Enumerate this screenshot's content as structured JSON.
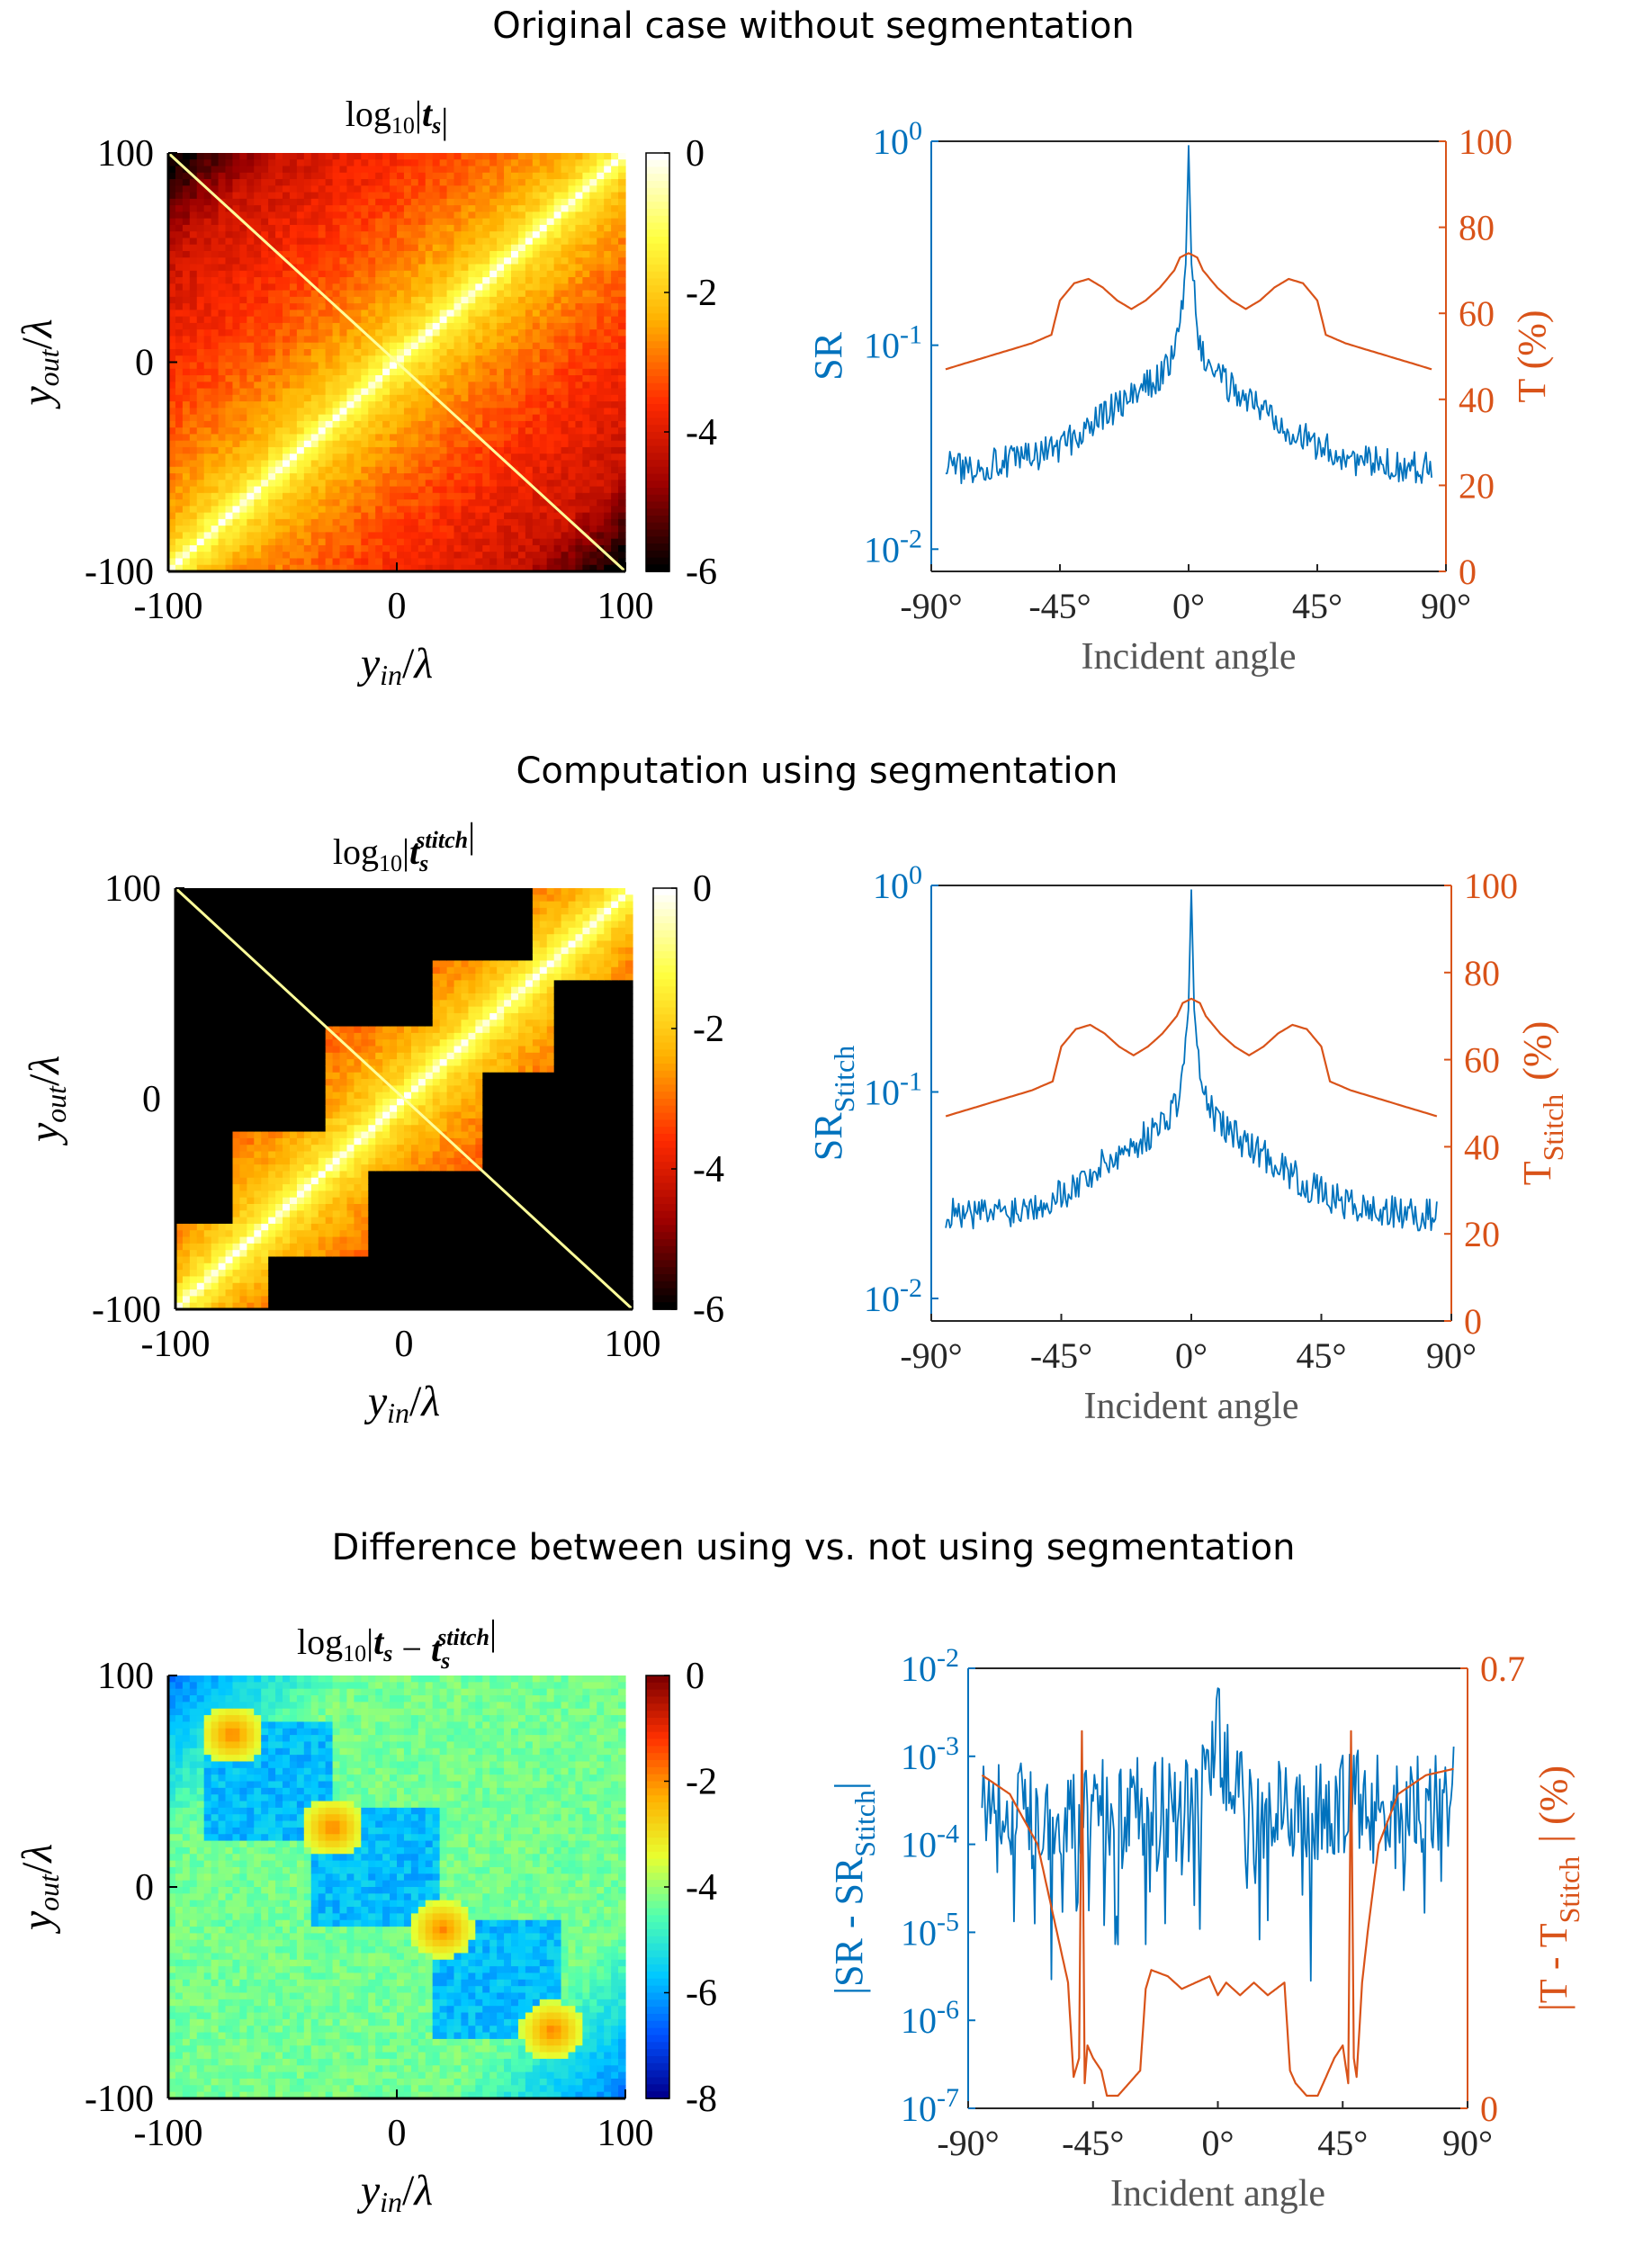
{
  "figure": {
    "section_titles": [
      "Original case without segmentation",
      "Computation using segmentation",
      "Difference between using vs. not using segmentation"
    ]
  },
  "colors": {
    "sr_blue": "#0072BD",
    "t_orange": "#D95319",
    "hot_colormap": [
      "#000000",
      "#9b0000",
      "#ff2a00",
      "#ffb000",
      "#ffff40",
      "#ffffff"
    ],
    "jet_colormap": [
      "#00008f",
      "#0050ff",
      "#00c8ff",
      "#50ffb0",
      "#e8ff30",
      "#ffb000",
      "#ff3000",
      "#800000"
    ]
  },
  "chart_data": [
    {
      "type": "heatmap",
      "title": "log10|t_s|",
      "title_parts": {
        "prefix": "log",
        "sub": "10",
        "bar_open": "|",
        "var": "t",
        "var_sub": "s",
        "var_sup": "",
        "minus_var": "",
        "minus_sub": "",
        "minus_sup": "",
        "bar_close": "|"
      },
      "xlabel": "y_in/λ",
      "ylabel": "y_out/λ",
      "xlim": [
        -100,
        100
      ],
      "ylim": [
        -100,
        100
      ],
      "xticks": [
        "-100",
        "0",
        "100"
      ],
      "yticks": [
        "100",
        "0",
        "-100"
      ],
      "colormap": "hot",
      "clim": [
        -6,
        0
      ],
      "colorbar_ticks": [
        "0",
        "-2",
        "-4",
        "-6"
      ],
      "pattern": "decaying band along the diagonal y_out = y_in; log10 value 0 on the diagonal falling to about -6 at the far corners"
    },
    {
      "type": "line",
      "xlabel": "Incident angle",
      "xticks": [
        "-90°",
        "-45°",
        "0°",
        "45°",
        "90°"
      ],
      "xlim": [
        -90,
        90
      ],
      "y_left": {
        "label": "SR",
        "label_sub": "",
        "scale": "log",
        "ticks": [
          "10^0",
          "10^-1",
          "10^-2"
        ],
        "lim": [
          0.00778,
          1
        ]
      },
      "y_right": {
        "label": "T (%)",
        "label_sub": "",
        "scale": "linear",
        "ticks": [
          "100",
          "80",
          "60",
          "40",
          "20",
          "0"
        ],
        "lim": [
          0,
          100
        ]
      },
      "series": [
        {
          "name": "SR",
          "axis": "left",
          "x": [
            -85,
            -80,
            -70,
            -60,
            -50,
            -40,
            -30,
            -20,
            -10,
            -5,
            -3,
            -1,
            0,
            1,
            3,
            5,
            10,
            20,
            30,
            40,
            50,
            60,
            70,
            80,
            85
          ],
          "y": [
            0.026,
            0.025,
            0.026,
            0.027,
            0.03,
            0.035,
            0.045,
            0.055,
            0.07,
            0.09,
            0.12,
            0.25,
            0.95,
            0.25,
            0.12,
            0.09,
            0.07,
            0.055,
            0.045,
            0.035,
            0.03,
            0.027,
            0.026,
            0.025,
            0.026
          ]
        },
        {
          "name": "T (%)",
          "axis": "right",
          "x": [
            -85,
            -70,
            -55,
            -48,
            -45,
            -40,
            -35,
            -30,
            -25,
            -20,
            -15,
            -10,
            -5,
            -3,
            0,
            3,
            5,
            10,
            15,
            20,
            25,
            30,
            35,
            40,
            45,
            48,
            55,
            70,
            85
          ],
          "y": [
            47,
            50,
            53,
            55,
            63,
            67,
            68,
            66,
            63,
            61,
            63,
            66,
            70,
            73,
            74,
            73,
            70,
            66,
            63,
            61,
            63,
            66,
            68,
            67,
            63,
            55,
            53,
            50,
            47
          ]
        }
      ]
    },
    {
      "type": "heatmap",
      "title": "log10|t_s^stitch|",
      "title_parts": {
        "prefix": "log",
        "sub": "10",
        "bar_open": "|",
        "var": "t",
        "var_sub": "s",
        "var_sup": "stitch",
        "minus_var": "",
        "minus_sub": "",
        "minus_sup": "",
        "bar_close": "|"
      },
      "xlabel": "y_in/λ",
      "ylabel": "y_out/λ",
      "xlim": [
        -100,
        100
      ],
      "ylim": [
        -100,
        100
      ],
      "xticks": [
        "-100",
        "0",
        "100"
      ],
      "yticks": [
        "100",
        "0",
        "-100"
      ],
      "colormap": "hot",
      "clim": [
        -6,
        0
      ],
      "colorbar_ticks": [
        "0",
        "-2",
        "-4",
        "-6"
      ],
      "pattern": "same diagonal band truncated to a staircase of overlapping square blocks; values outside the blocks are at the floor (-6)"
    },
    {
      "type": "line",
      "xlabel": "Incident angle",
      "xticks": [
        "-90°",
        "-45°",
        "0°",
        "45°",
        "90°"
      ],
      "xlim": [
        -90,
        90
      ],
      "y_left": {
        "label": "SR",
        "label_sub": "Stitch",
        "scale": "log",
        "ticks": [
          "10^0",
          "10^-1",
          "10^-2"
        ],
        "lim": [
          0.00778,
          1
        ]
      },
      "y_right": {
        "label": "T",
        "label_sub": "Stitch",
        "label_tail": "(%)",
        "scale": "linear",
        "ticks": [
          "100",
          "80",
          "60",
          "40",
          "20",
          "0"
        ],
        "lim": [
          0,
          100
        ]
      },
      "series": [
        {
          "name": "SR_Stitch",
          "axis": "left",
          "x": [
            -85,
            -80,
            -70,
            -60,
            -50,
            -40,
            -30,
            -20,
            -10,
            -5,
            -3,
            -1,
            0,
            1,
            3,
            5,
            10,
            20,
            30,
            40,
            50,
            60,
            70,
            80,
            85
          ],
          "y": [
            0.026,
            0.025,
            0.026,
            0.027,
            0.03,
            0.035,
            0.045,
            0.055,
            0.07,
            0.09,
            0.12,
            0.25,
            0.95,
            0.25,
            0.12,
            0.09,
            0.07,
            0.055,
            0.045,
            0.035,
            0.03,
            0.027,
            0.026,
            0.025,
            0.026
          ]
        },
        {
          "name": "T_Stitch (%)",
          "axis": "right",
          "x": [
            -85,
            -70,
            -55,
            -48,
            -45,
            -40,
            -35,
            -30,
            -25,
            -20,
            -15,
            -10,
            -5,
            -3,
            0,
            3,
            5,
            10,
            15,
            20,
            25,
            30,
            35,
            40,
            45,
            48,
            55,
            70,
            85
          ],
          "y": [
            47,
            50,
            53,
            55,
            63,
            67,
            68,
            66,
            63,
            61,
            63,
            66,
            70,
            73,
            74,
            73,
            70,
            66,
            63,
            61,
            63,
            66,
            68,
            67,
            63,
            55,
            53,
            50,
            47
          ]
        }
      ]
    },
    {
      "type": "heatmap",
      "title": "log10|t_s - t_s^stitch|",
      "title_parts": {
        "prefix": "log",
        "sub": "10",
        "bar_open": "|",
        "var": "t",
        "var_sub": "s",
        "var_sup": "",
        "minus_var": "t",
        "minus_sub": "s",
        "minus_sup": "stitch",
        "bar_close": "|"
      },
      "xlabel": "y_in/λ",
      "ylabel": "y_out/λ",
      "xlim": [
        -100,
        100
      ],
      "ylim": [
        -100,
        100
      ],
      "xticks": [
        "-100",
        "0",
        "100"
      ],
      "yticks": [
        "100",
        "0",
        "-100"
      ],
      "colormap": "jet",
      "clim": [
        -8,
        0
      ],
      "colorbar_ticks": [
        "0",
        "-2",
        "-4",
        "-6",
        "-8"
      ],
      "pattern": "background around -4 to -5 with peaks (about -2) at block corners along the diagonal; low values (-6 to -7) inside diagonal blocks and toward the anti-diagonal corners"
    },
    {
      "type": "line",
      "xlabel": "Incident angle",
      "xticks": [
        "-90°",
        "-45°",
        "0°",
        "45°",
        "90°"
      ],
      "xlim": [
        -90,
        90
      ],
      "y_left": {
        "label": "|SR - SR",
        "label_sub": "Stitch",
        "label_tail": "|",
        "scale": "log",
        "ticks": [
          "10^-2",
          "10^-3",
          "10^-4",
          "10^-5",
          "10^-6",
          "10^-7"
        ],
        "lim": [
          1e-07,
          0.01
        ]
      },
      "y_right": {
        "label": "|T - T",
        "label_sub": "Stitch",
        "label_tail": "| (%)",
        "scale": "linear",
        "ticks": [
          "0.7",
          "0"
        ],
        "lim": [
          0,
          0.7
        ]
      },
      "series": [
        {
          "name": "|SR - SR_Stitch|",
          "axis": "left",
          "x": [
            -85,
            -75,
            -65,
            -55,
            -45,
            -35,
            -25,
            -15,
            -5,
            0,
            5,
            15,
            25,
            35,
            45,
            55,
            65,
            75,
            85
          ],
          "y": [
            0.0004,
            0.0003,
            0.0002,
            0.0003,
            0.0003,
            0.0002,
            0.0003,
            0.0002,
            0.0004,
            0.0022,
            0.0004,
            0.0002,
            0.0003,
            0.0002,
            0.0003,
            0.0003,
            0.0002,
            0.0003,
            0.0004
          ],
          "noisy": true
        },
        {
          "name": "|T - T_Stitch| (%)",
          "axis": "right",
          "x": [
            -85,
            -75,
            -65,
            -58,
            -54,
            -52,
            -50,
            -49,
            -48,
            -47,
            -45,
            -42,
            -40,
            -36,
            -32,
            -28,
            -26,
            -24,
            -18,
            -13,
            -8,
            -3,
            0,
            3,
            8,
            13,
            18,
            24,
            26,
            28,
            32,
            36,
            40,
            42,
            45,
            47,
            48,
            49,
            50,
            52,
            54,
            58,
            65,
            75,
            85
          ],
          "y": [
            0.53,
            0.5,
            0.42,
            0.28,
            0.2,
            0.05,
            0.08,
            0.6,
            0.04,
            0.1,
            0.08,
            0.06,
            0.02,
            0.02,
            0.04,
            0.06,
            0.19,
            0.22,
            0.21,
            0.19,
            0.2,
            0.21,
            0.18,
            0.2,
            0.18,
            0.2,
            0.18,
            0.2,
            0.06,
            0.04,
            0.02,
            0.02,
            0.06,
            0.08,
            0.1,
            0.04,
            0.6,
            0.08,
            0.05,
            0.2,
            0.28,
            0.42,
            0.5,
            0.53,
            0.54
          ]
        }
      ]
    }
  ]
}
